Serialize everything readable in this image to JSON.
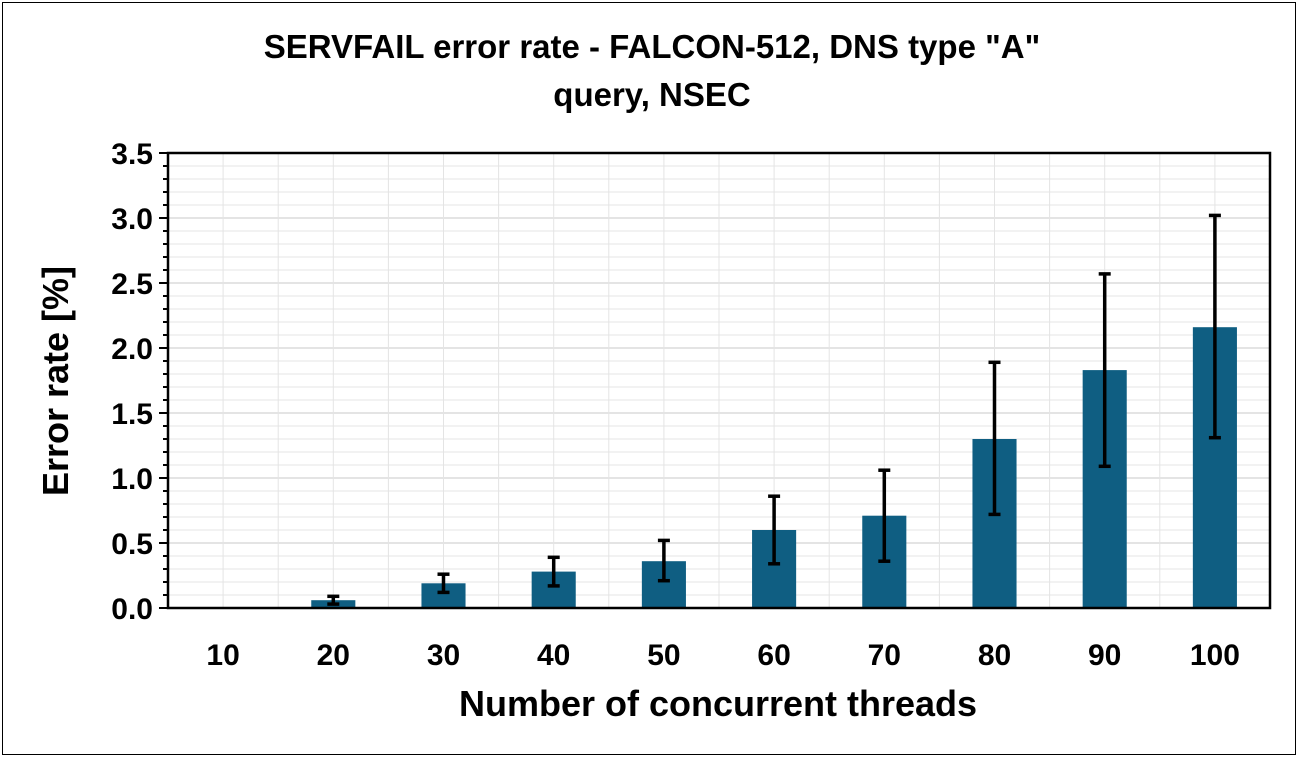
{
  "chart_data": {
    "type": "bar",
    "title_lines": [
      "SERVFAIL error rate - FALCON-512, DNS type \"A\"",
      "query, NSEC"
    ],
    "xlabel": "Number of concurrent threads",
    "ylabel": "Error rate [%]",
    "categories": [
      "10",
      "20",
      "30",
      "40",
      "50",
      "60",
      "70",
      "80",
      "90",
      "100"
    ],
    "values": [
      0.0,
      0.06,
      0.19,
      0.28,
      0.36,
      0.6,
      0.71,
      1.3,
      1.83,
      2.16
    ],
    "error_low": [
      0.0,
      0.03,
      0.12,
      0.17,
      0.21,
      0.34,
      0.36,
      0.72,
      1.09,
      1.31
    ],
    "error_high": [
      0.0,
      0.09,
      0.26,
      0.39,
      0.52,
      0.86,
      1.06,
      1.89,
      2.57,
      3.02
    ],
    "ylim": [
      0,
      3.5
    ],
    "yticks": [
      "0.0",
      "0.5",
      "1.0",
      "1.5",
      "2.0",
      "2.5",
      "3.0",
      "3.5"
    ],
    "grid": true,
    "legend": "none",
    "bar_color": "#0f5e82",
    "errorbar_color": "#000000"
  }
}
